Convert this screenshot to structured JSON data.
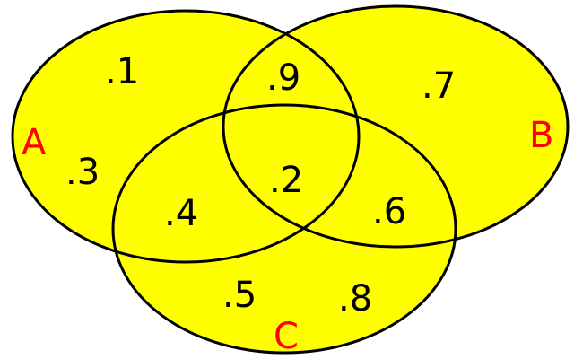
{
  "colors": {
    "fill": "#ffff00",
    "stroke": "#000000",
    "set_label": "#ff0000",
    "value_label": "#000000",
    "background": "#ffffff"
  },
  "sets": {
    "a": {
      "label": "A"
    },
    "b": {
      "label": "B"
    },
    "c": {
      "label": "C"
    }
  },
  "regions": [
    {
      "id": "a-only-top",
      "value": ".1"
    },
    {
      "id": "a-only-left",
      "value": ".3"
    },
    {
      "id": "a-and-b",
      "value": ".9"
    },
    {
      "id": "b-only",
      "value": ".7"
    },
    {
      "id": "a-b-and-c",
      "value": ".2"
    },
    {
      "id": "a-and-c",
      "value": ".4"
    },
    {
      "id": "b-and-c",
      "value": ".6"
    },
    {
      "id": "c-only-left",
      "value": ".5"
    },
    {
      "id": "c-only-right",
      "value": ".8"
    }
  ]
}
